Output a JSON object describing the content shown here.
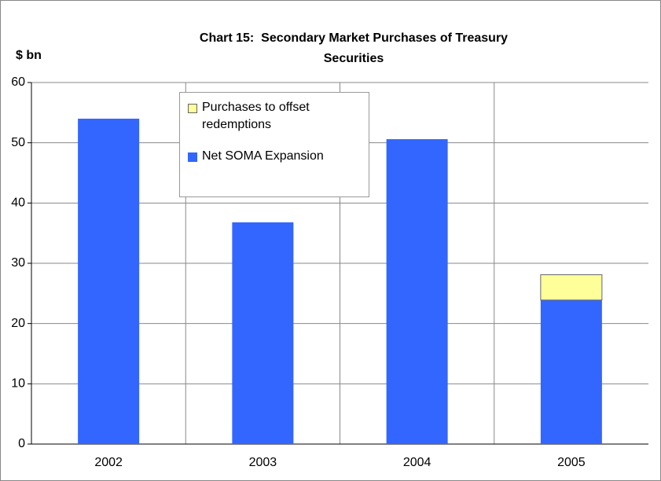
{
  "chart_data": {
    "type": "stacked_bar",
    "title": "Chart 15:  Secondary Market Purchases of Treasury Securities",
    "y_label": "$ bn",
    "categories": [
      "2002",
      "2003",
      "2004",
      "2005"
    ],
    "series": [
      {
        "name": "Net SOMA Expansion",
        "color": "#3366ff",
        "values": [
          54,
          36.8,
          50.6,
          23.9
        ]
      },
      {
        "name": "Purchases to offset redemptions",
        "color": "#ffff99",
        "values": [
          0,
          0,
          0,
          4.2
        ]
      }
    ],
    "ylim": [
      0,
      60
    ],
    "yticks": [
      0,
      10,
      20,
      30,
      40,
      50,
      60
    ],
    "grid": true
  }
}
